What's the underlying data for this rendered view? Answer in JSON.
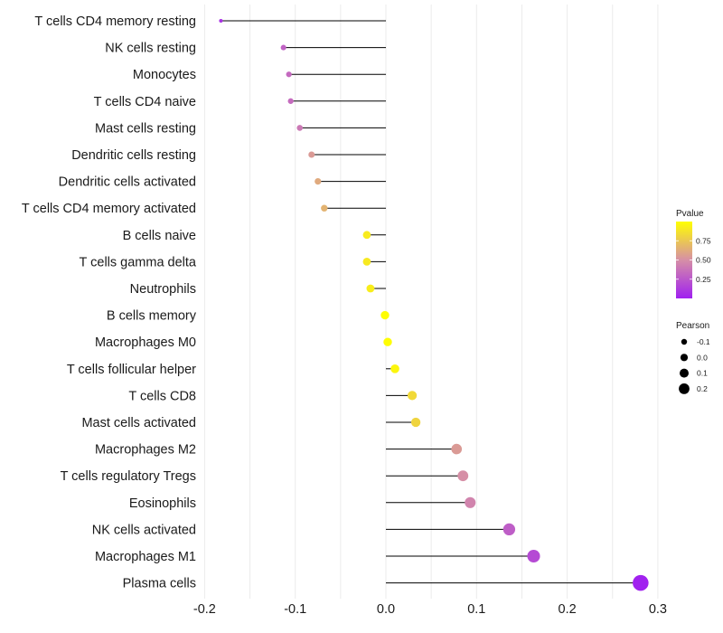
{
  "chart_data": {
    "type": "lollipop",
    "title": "",
    "xlabel": "",
    "ylabel": "",
    "xlim": [
      -0.2,
      0.3
    ],
    "x_ticks": [
      -0.2,
      -0.1,
      0.0,
      0.1,
      0.2,
      0.3
    ],
    "x_tick_labels": [
      "-0.2",
      "-0.1",
      "0.0",
      "0.1",
      "0.2",
      "0.3"
    ],
    "categories": [
      "T cells CD4 memory resting",
      "NK cells resting",
      "Monocytes",
      "T cells CD4 naive",
      "Mast cells resting",
      "Dendritic cells resting",
      "Dendritic cells activated",
      "T cells CD4 memory activated",
      "B cells naive",
      "T cells gamma delta",
      "Neutrophils",
      "B cells memory",
      "Macrophages M0",
      "T cells follicular helper",
      "T cells CD8",
      "Mast cells activated",
      "Macrophages M2",
      "T cells regulatory  Tregs ",
      "Eosinophils",
      "NK cells activated",
      "Macrophages M1",
      "Plasma cells"
    ],
    "pearson": [
      -0.182,
      -0.113,
      -0.107,
      -0.105,
      -0.095,
      -0.082,
      -0.075,
      -0.068,
      -0.021,
      -0.021,
      -0.017,
      -0.001,
      0.002,
      0.01,
      0.029,
      0.033,
      0.078,
      0.085,
      0.093,
      0.136,
      0.163,
      0.281
    ],
    "pvalue": [
      0.08,
      0.3,
      0.33,
      0.34,
      0.4,
      0.55,
      0.62,
      0.66,
      0.91,
      0.9,
      0.92,
      0.99,
      0.99,
      0.96,
      0.83,
      0.81,
      0.55,
      0.5,
      0.45,
      0.28,
      0.19,
      0.01
    ],
    "legend": {
      "color": {
        "title": "Pvalue",
        "breaks": [
          0.25,
          0.5,
          0.75
        ],
        "labels": [
          "0.25",
          "0.50",
          "0.75"
        ],
        "range": [
          0.0,
          1.0
        ],
        "low_color": "#a020f0",
        "mid_color": "#d68fa6",
        "high_color": "#ffff00"
      },
      "size": {
        "title": "Pearson",
        "breaks": [
          -0.1,
          0.0,
          0.1,
          0.2
        ],
        "labels": [
          "-0.1",
          "0.0",
          "0.1",
          "0.2"
        ]
      },
      "position": "right"
    }
  }
}
